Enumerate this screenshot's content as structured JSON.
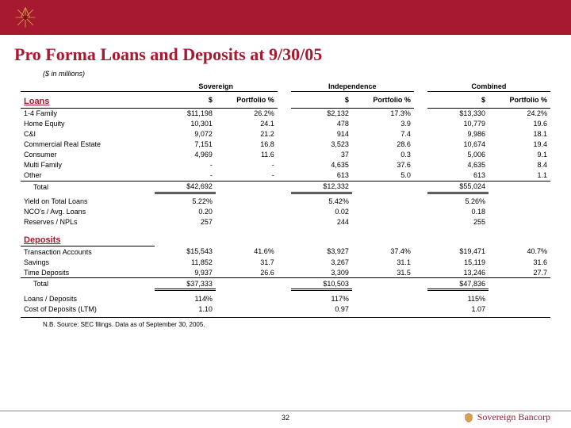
{
  "banner_color": "#a6192e",
  "title": "Pro Forma Loans and Deposits at 9/30/05",
  "subtitle": "($ in millions)",
  "groups": [
    "Sovereign",
    "Independence",
    "Combined"
  ],
  "col_headers": [
    "$",
    "Portfolio %"
  ],
  "loans": {
    "section": "Loans",
    "rows": [
      {
        "label": "1-4 Family",
        "sov_v": "$11,198",
        "sov_p": "26.2%",
        "ind_v": "$2,132",
        "ind_p": "17.3%",
        "com_v": "$13,330",
        "com_p": "24.2%"
      },
      {
        "label": "Home Equity",
        "sov_v": "10,301",
        "sov_p": "24.1",
        "ind_v": "478",
        "ind_p": "3.9",
        "com_v": "10,779",
        "com_p": "19.6"
      },
      {
        "label": "C&I",
        "sov_v": "9,072",
        "sov_p": "21.2",
        "ind_v": "914",
        "ind_p": "7.4",
        "com_v": "9,986",
        "com_p": "18.1"
      },
      {
        "label": "Commercial Real Estate",
        "sov_v": "7,151",
        "sov_p": "16.8",
        "ind_v": "3,523",
        "ind_p": "28.6",
        "com_v": "10,674",
        "com_p": "19.4"
      },
      {
        "label": "Consumer",
        "sov_v": "4,969",
        "sov_p": "11.6",
        "ind_v": "37",
        "ind_p": "0.3",
        "com_v": "5,006",
        "com_p": "9.1"
      },
      {
        "label": "Multi Family",
        "sov_v": "-",
        "sov_p": "-",
        "ind_v": "4,635",
        "ind_p": "37.6",
        "com_v": "4,635",
        "com_p": "8.4"
      },
      {
        "label": "Other",
        "sov_v": "-",
        "sov_p": "-",
        "ind_v": "613",
        "ind_p": "5.0",
        "com_v": "613",
        "com_p": "1.1"
      }
    ],
    "total": {
      "label": "Total",
      "sov_v": "$42,692",
      "ind_v": "$12,332",
      "com_v": "$55,024"
    },
    "metrics": [
      {
        "label": "Yield on Total Loans",
        "sov": "5.22%",
        "ind": "5.42%",
        "com": "5.26%"
      },
      {
        "label": "NCO's / Avg. Loans",
        "sov": "0.20",
        "ind": "0.02",
        "com": "0.18"
      },
      {
        "label": "Reserves / NPLs",
        "sov": "257",
        "ind": "244",
        "com": "255"
      }
    ]
  },
  "deposits": {
    "section": "Deposits",
    "rows": [
      {
        "label": "Transaction Accounts",
        "sov_v": "$15,543",
        "sov_p": "41.6%",
        "ind_v": "$3,927",
        "ind_p": "37.4%",
        "com_v": "$19,471",
        "com_p": "40.7%"
      },
      {
        "label": "Savings",
        "sov_v": "11,852",
        "sov_p": "31.7",
        "ind_v": "3,267",
        "ind_p": "31.1",
        "com_v": "15,119",
        "com_p": "31.6"
      },
      {
        "label": "Time Deposits",
        "sov_v": "9,937",
        "sov_p": "26.6",
        "ind_v": "3,309",
        "ind_p": "31.5",
        "com_v": "13,246",
        "com_p": "27.7"
      }
    ],
    "total": {
      "label": "Total",
      "sov_v": "$37,333",
      "ind_v": "$10,503",
      "com_v": "$47,836"
    },
    "metrics": [
      {
        "label": "Loans / Deposits",
        "sov": "114%",
        "ind": "117%",
        "com": "115%"
      },
      {
        "label": "Cost of Deposits (LTM)",
        "sov": "1.10",
        "ind": "0.97",
        "com": "1.07"
      }
    ]
  },
  "footnote": "N.B. Source: SEC filings. Data as of September 30, 2005.",
  "page_number": "32",
  "company": "Sovereign Bancorp"
}
